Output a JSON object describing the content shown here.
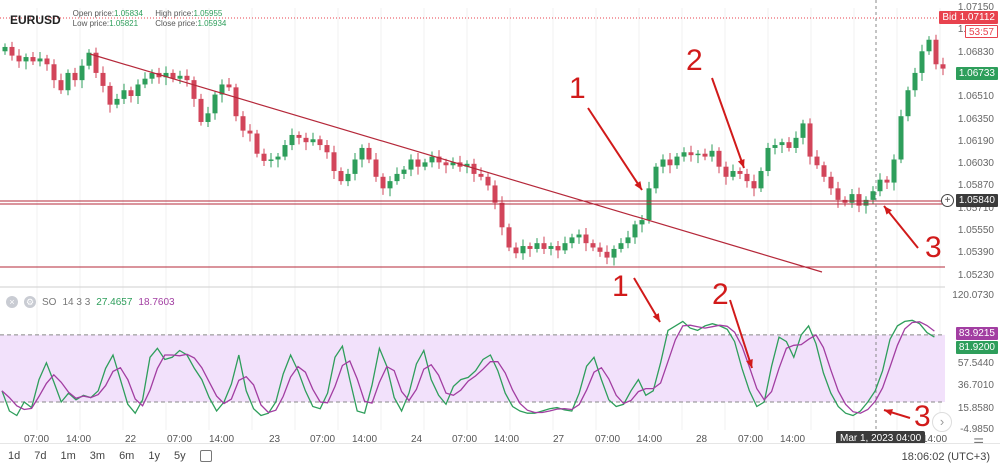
{
  "header": {
    "symbol": "EURUSD",
    "open_label": "Open price:",
    "open_value": "1.05834",
    "low_label": "Low price:",
    "low_value": "1.05821",
    "high_label": "High price:",
    "high_value": "1.05955",
    "close_label": "Close price:",
    "close_value": "1.05934"
  },
  "price_axis": {
    "ticks": [
      "1.07150",
      "1.06990",
      "1.06830",
      "1.06670",
      "1.06510",
      "1.06350",
      "1.06190",
      "1.06030",
      "1.05870",
      "1.05710",
      "1.05550",
      "1.05390",
      "1.05230"
    ],
    "bid_tag": "Bid 1.07112",
    "countdown_tag": "53:57",
    "last_tag": "1.06733",
    "crosshair_tag": "1.05840",
    "plus_icon": "crosshair-plus-icon"
  },
  "oscillator": {
    "name": "SO",
    "params": "14 3 3",
    "k_value": "27.4657",
    "d_value": "18.7603",
    "axis_ticks": [
      "120.0730",
      "57.5440",
      "36.7010",
      "15.8580",
      "-4.9850"
    ],
    "k_tag": "83.9215",
    "d_tag": "81.9200",
    "upper_level": 80,
    "lower_level": 20
  },
  "time_axis": {
    "labels": [
      "07:00",
      "14:00",
      "22",
      "07:00",
      "14:00",
      "23",
      "07:00",
      "14:00",
      "24",
      "07:00",
      "14:00",
      "27",
      "07:00",
      "14:00",
      "28",
      "07:00",
      "14:00",
      "14:00"
    ],
    "crosshair_label": "Mar 1, 2023 04:00"
  },
  "periods": [
    "1d",
    "7d",
    "1m",
    "3m",
    "6m",
    "1y",
    "5y"
  ],
  "clock": "18:06:02 (UTC+3)",
  "annotations": {
    "top": [
      "1",
      "2",
      "3"
    ],
    "bottom": [
      "1",
      "2",
      "3"
    ]
  },
  "colors": {
    "bull": "#2e9e5b",
    "bear": "#d2455a",
    "trend": "#b5283a",
    "k_line": "#2e9e5b",
    "d_line": "#a23ea2",
    "zone": "#f2e1fb",
    "annotation": "#d11a1a",
    "bid_tag": "#e8424e",
    "last_tag": "#2e9e5b",
    "cross_tag": "#3b3b3b"
  }
}
